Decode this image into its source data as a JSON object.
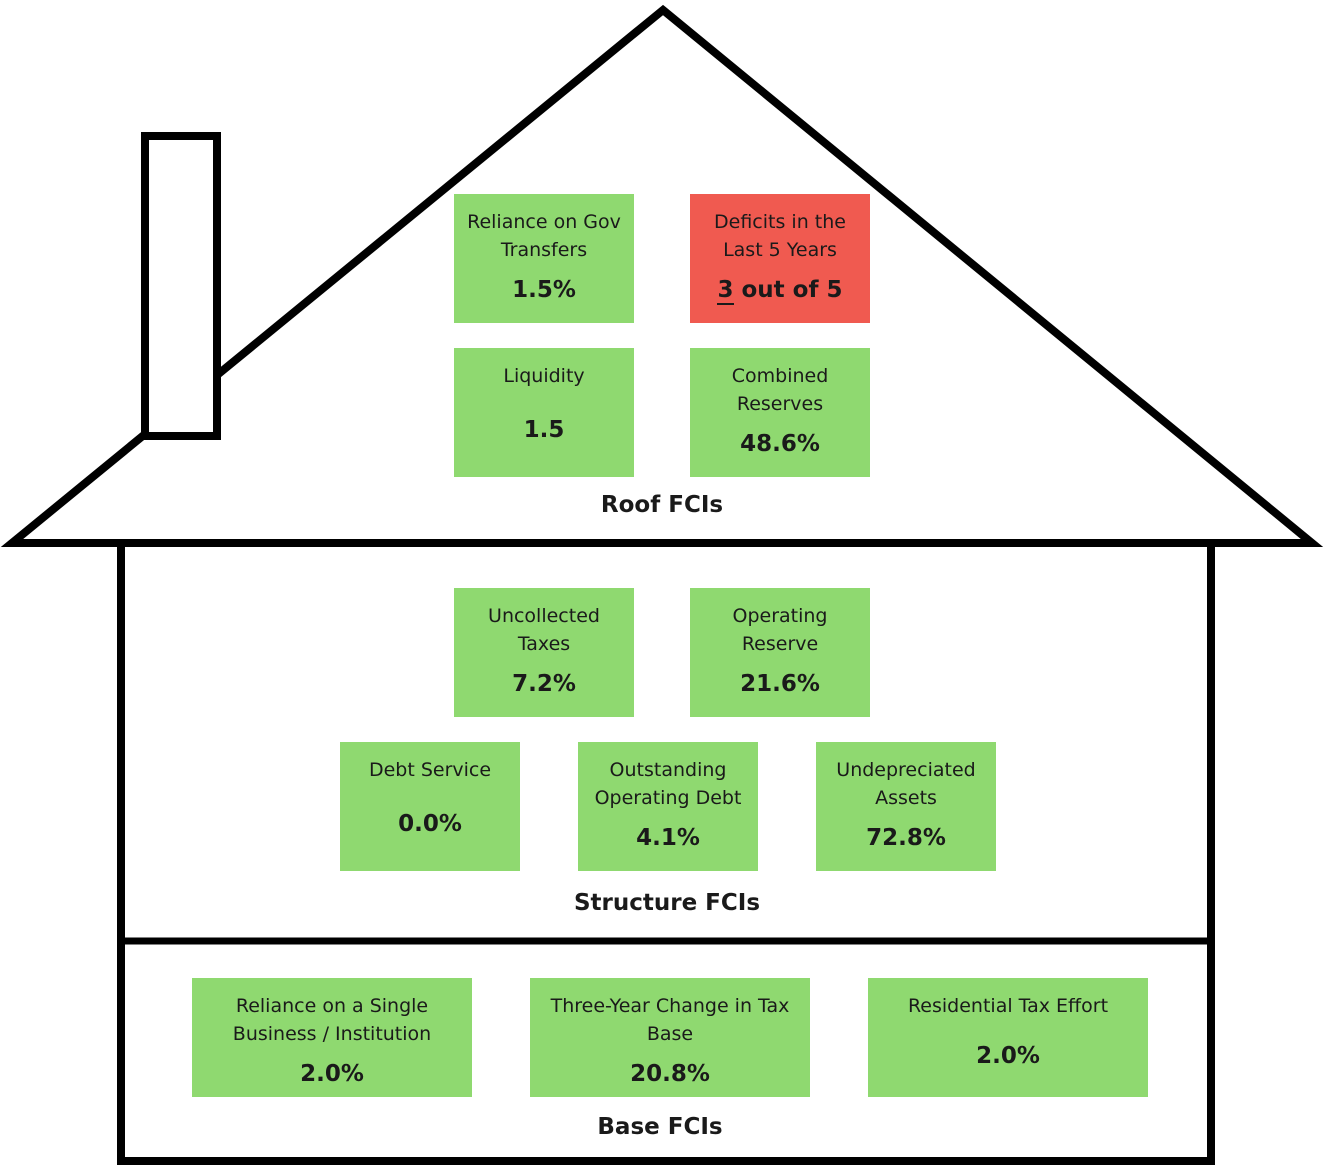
{
  "roof": {
    "title": "Roof FCIs",
    "items": [
      {
        "label": "Reliance on Gov Transfers",
        "value": "1.5%"
      },
      {
        "label": "Deficits in the Last 5 Years",
        "value_count": "3",
        "value_rest": " out of 5",
        "status_color": "#f05a50"
      },
      {
        "label": "Liquidity",
        "value": "1.5"
      },
      {
        "label": "Combined Reserves",
        "value": "48.6%"
      }
    ]
  },
  "structure": {
    "title": "Structure FCIs",
    "items": [
      {
        "label": "Uncollected Taxes",
        "value": "7.2%"
      },
      {
        "label": "Operating Reserve",
        "value": "21.6%"
      },
      {
        "label": "Debt Service",
        "value": "0.0%"
      },
      {
        "label": "Outstanding Operating Debt",
        "value": "4.1%"
      },
      {
        "label": "Undepreciated Assets",
        "value": "72.8%"
      }
    ]
  },
  "base": {
    "title": "Base FCIs",
    "items": [
      {
        "label": "Reliance on a Single Business / Institution",
        "value": "2.0%"
      },
      {
        "label": "Three-Year Change in Tax Base",
        "value": "20.8%"
      },
      {
        "label": "Residential Tax Effort",
        "value": "2.0%"
      }
    ]
  },
  "colors": {
    "good": "#8fd970",
    "bad": "#f05a50",
    "outline": "#000000"
  }
}
